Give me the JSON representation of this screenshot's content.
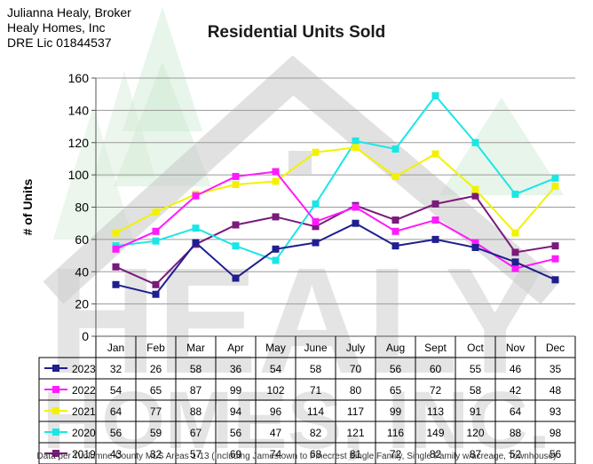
{
  "header": {
    "broker_lines": [
      "Julianna Healy, Broker",
      "Healy Homes, Inc",
      "DRE Lic 01844537"
    ]
  },
  "watermark": {
    "text_line1": "HEALY",
    "text_line2": "HOMES, INC."
  },
  "footer": {
    "source": "Data per Tuolumne County MLS Areas 1-13 (Including Jamestown to Pinecrest Single Family, Single Family w/acreage, Townhouse)"
  },
  "chart_data": {
    "type": "line",
    "title": "Residential Units Sold",
    "xlabel": "",
    "ylabel": "# of Units",
    "ylim": [
      0,
      160
    ],
    "yticks": [
      0,
      20,
      40,
      60,
      80,
      100,
      120,
      140,
      160
    ],
    "grid": true,
    "legend": "data-table-below",
    "categories": [
      "Jan",
      "Feb",
      "Mar",
      "Apr",
      "May",
      "June",
      "July",
      "Aug",
      "Sept",
      "Oct",
      "Nov",
      "Dec"
    ],
    "series": [
      {
        "name": "2023",
        "color": "#1f1f8f",
        "values": [
          32,
          26,
          58,
          36,
          54,
          58,
          70,
          56,
          60,
          55,
          46,
          35
        ]
      },
      {
        "name": "2022",
        "color": "#ff1aff",
        "values": [
          54,
          65,
          87,
          99,
          102,
          71,
          80,
          65,
          72,
          58,
          42,
          48
        ]
      },
      {
        "name": "2021",
        "color": "#f2f200",
        "values": [
          64,
          77,
          88,
          94,
          96,
          114,
          117,
          99,
          113,
          91,
          64,
          93
        ]
      },
      {
        "name": "2020",
        "color": "#1ae6e6",
        "values": [
          56,
          59,
          67,
          56,
          47,
          82,
          121,
          116,
          149,
          120,
          88,
          98
        ]
      },
      {
        "name": "2019",
        "color": "#7a1a7a",
        "values": [
          43,
          32,
          57,
          69,
          74,
          68,
          81,
          72,
          82,
          87,
          52,
          56
        ]
      }
    ]
  }
}
